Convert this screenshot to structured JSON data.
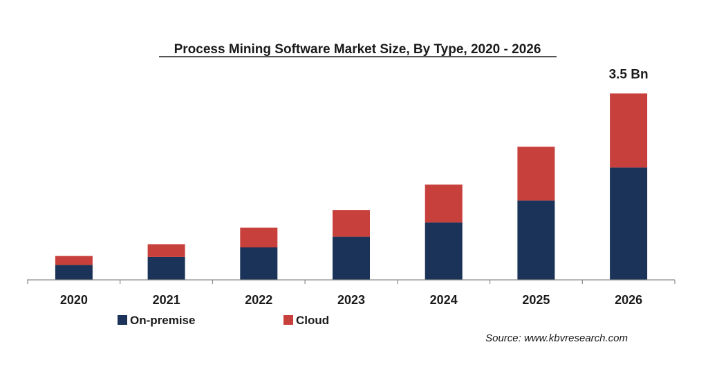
{
  "chart_data": {
    "type": "bar",
    "stacked": true,
    "title": "Process Mining Software Market Size, By Type, 2020 - 2026",
    "categories": [
      "2020",
      "2021",
      "2022",
      "2023",
      "2024",
      "2025",
      "2026"
    ],
    "series": [
      {
        "name": "On-premise",
        "color": "#1b3358",
        "values": [
          0.28,
          0.43,
          0.61,
          0.81,
          1.08,
          1.49,
          2.11
        ]
      },
      {
        "name": "Cloud",
        "color": "#c8403c",
        "values": [
          0.17,
          0.24,
          0.37,
          0.5,
          0.71,
          1.01,
          1.39
        ]
      }
    ],
    "ylim": [
      0,
      3.5
    ],
    "grid": false,
    "legend_position": "bottom-left",
    "annotations": [
      {
        "category": "2026",
        "text": "3.5 Bn"
      }
    ],
    "source": "Source: www.kbvresearch.com"
  }
}
